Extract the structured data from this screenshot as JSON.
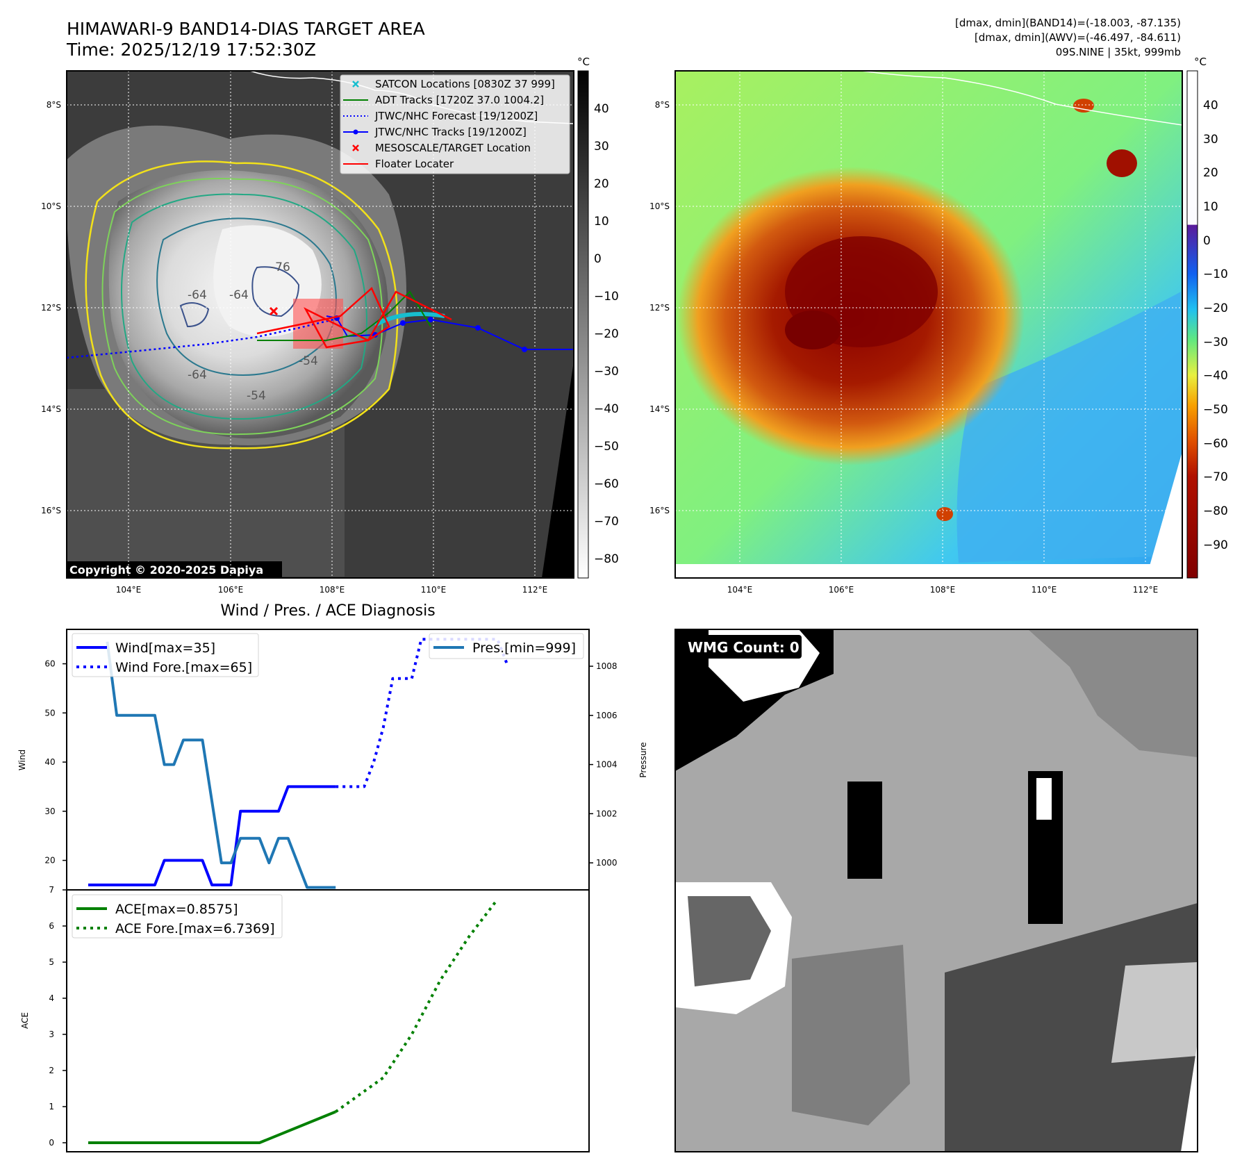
{
  "header": {
    "title_line1": "HIMAWARI-9 BAND14-DIAS TARGET AREA",
    "title_line2": "Time: 2025/12/19 17:52:30Z",
    "stats_line1": "[dmax, dmin](BAND14)=(-18.003, -87.135)",
    "stats_line2": "[dmax, dmin](AWV)=(-46.497, -84.611)",
    "stats_line3": "09S.NINE | 35kt, 999mb"
  },
  "map": {
    "lat_labels": [
      "8°S",
      "10°S",
      "12°S",
      "14°S",
      "16°S"
    ],
    "lon_labels": [
      "104°E",
      "106°E",
      "108°E",
      "110°E",
      "112°E"
    ],
    "contour_labels": [
      "-76",
      "-64",
      "-64",
      "-64",
      "-54",
      "-54"
    ],
    "copyright": "Copyright © 2020-2025 Dapiya",
    "legend": [
      {
        "label": "SATCON Locations [0830Z 37 999]",
        "color": "#17becf",
        "symbol": "x"
      },
      {
        "label": "ADT Tracks [1720Z 37.0 1004.2]",
        "color": "#008000",
        "symbol": "line"
      },
      {
        "label": "JTWC/NHC Forecast [19/1200Z]",
        "color": "#0000ff",
        "symbol": "dotted"
      },
      {
        "label": "JTWC/NHC Tracks [19/1200Z]",
        "color": "#0000ff",
        "symbol": "line-dot"
      },
      {
        "label": "MESOSCALE/TARGET Location",
        "color": "#ff0000",
        "symbol": "x"
      },
      {
        "label": "Floater Locater",
        "color": "#ff0000",
        "symbol": "line"
      }
    ]
  },
  "colorbar_ir": {
    "unit": "°C",
    "ticks": [
      "40",
      "30",
      "20",
      "10",
      "0",
      "−10",
      "−20",
      "−30",
      "−40",
      "−50",
      "−60",
      "−70",
      "−80"
    ]
  },
  "colorbar_awv": {
    "unit": "°C",
    "ticks": [
      "40",
      "30",
      "20",
      "10",
      "0",
      "−10",
      "−20",
      "−30",
      "−40",
      "−50",
      "−60",
      "−70",
      "−80",
      "−90"
    ]
  },
  "chart_data": [
    {
      "type": "line",
      "title": "Wind / Pres. / ACE Diagnosis",
      "ylabel": "Wind",
      "y2label": "Pressure",
      "ylim": [
        14,
        67
      ],
      "y2lim": [
        998.9,
        1009.5
      ],
      "yticks": [
        "20",
        "30",
        "40",
        "50",
        "60"
      ],
      "y2ticks": [
        "1000",
        "1002",
        "1004",
        "1006",
        "1008"
      ],
      "x": [
        0,
        1,
        2,
        3,
        4,
        5,
        6,
        7,
        8,
        9,
        10,
        11,
        12,
        13,
        14,
        15,
        16,
        17,
        18,
        19,
        20,
        21,
        22,
        23,
        24,
        25,
        26,
        27,
        28,
        29,
        30,
        31,
        32,
        33,
        34,
        35
      ],
      "series": [
        {
          "name": "Wind[max=35]",
          "style": "solid",
          "color": "#0000ff",
          "points": [
            [
              0,
              15
            ],
            [
              7,
              15
            ],
            [
              8,
              20
            ],
            [
              12,
              20
            ],
            [
              13,
              15
            ],
            [
              15,
              15
            ],
            [
              16,
              30
            ],
            [
              20,
              30
            ],
            [
              21,
              35
            ],
            [
              26,
              35
            ]
          ]
        },
        {
          "name": "Wind Fore.[max=65]",
          "style": "dotted",
          "color": "#0000ff",
          "points": [
            [
              26,
              35
            ],
            [
              29,
              35
            ],
            [
              30,
              40
            ],
            [
              31,
              47
            ],
            [
              32,
              57
            ],
            [
              34,
              57
            ],
            [
              35,
              65
            ],
            [
              43,
              65
            ],
            [
              44,
              60
            ]
          ]
        },
        {
          "name": "Pres.[min=999]",
          "style": "solid",
          "color": "#1f77b4",
          "axis": "y2",
          "points": [
            [
              2,
              1009
            ],
            [
              3,
              1006
            ],
            [
              7,
              1006
            ],
            [
              8,
              1004
            ],
            [
              9,
              1004
            ],
            [
              10,
              1005
            ],
            [
              12,
              1005
            ],
            [
              13,
              1002.5
            ],
            [
              14,
              1000
            ],
            [
              15,
              1000
            ],
            [
              16,
              1001
            ],
            [
              18,
              1001
            ],
            [
              19,
              1000
            ],
            [
              20,
              1001
            ],
            [
              21,
              1001
            ],
            [
              23,
              999
            ],
            [
              26,
              999
            ]
          ]
        }
      ]
    },
    {
      "type": "line",
      "ylabel": "ACE",
      "ylim": [
        -0.25,
        7
      ],
      "yticks": [
        "0",
        "1",
        "2",
        "3",
        "4",
        "5",
        "6",
        "7"
      ],
      "series": [
        {
          "name": "ACE[max=0.8575]",
          "style": "solid",
          "color": "#008000",
          "points": [
            [
              0,
              0
            ],
            [
              18,
              0
            ],
            [
              26,
              0.8575
            ]
          ]
        },
        {
          "name": "ACE Fore.[max=6.7369]",
          "style": "dotted",
          "color": "#008000",
          "points": [
            [
              26,
              0.8575
            ],
            [
              31,
              1.8
            ],
            [
              34,
              3.0
            ],
            [
              37,
              4.5
            ],
            [
              40,
              5.7
            ],
            [
              43,
              6.7369
            ]
          ]
        }
      ]
    }
  ],
  "wmg": {
    "label": "WMG Count: 0"
  }
}
